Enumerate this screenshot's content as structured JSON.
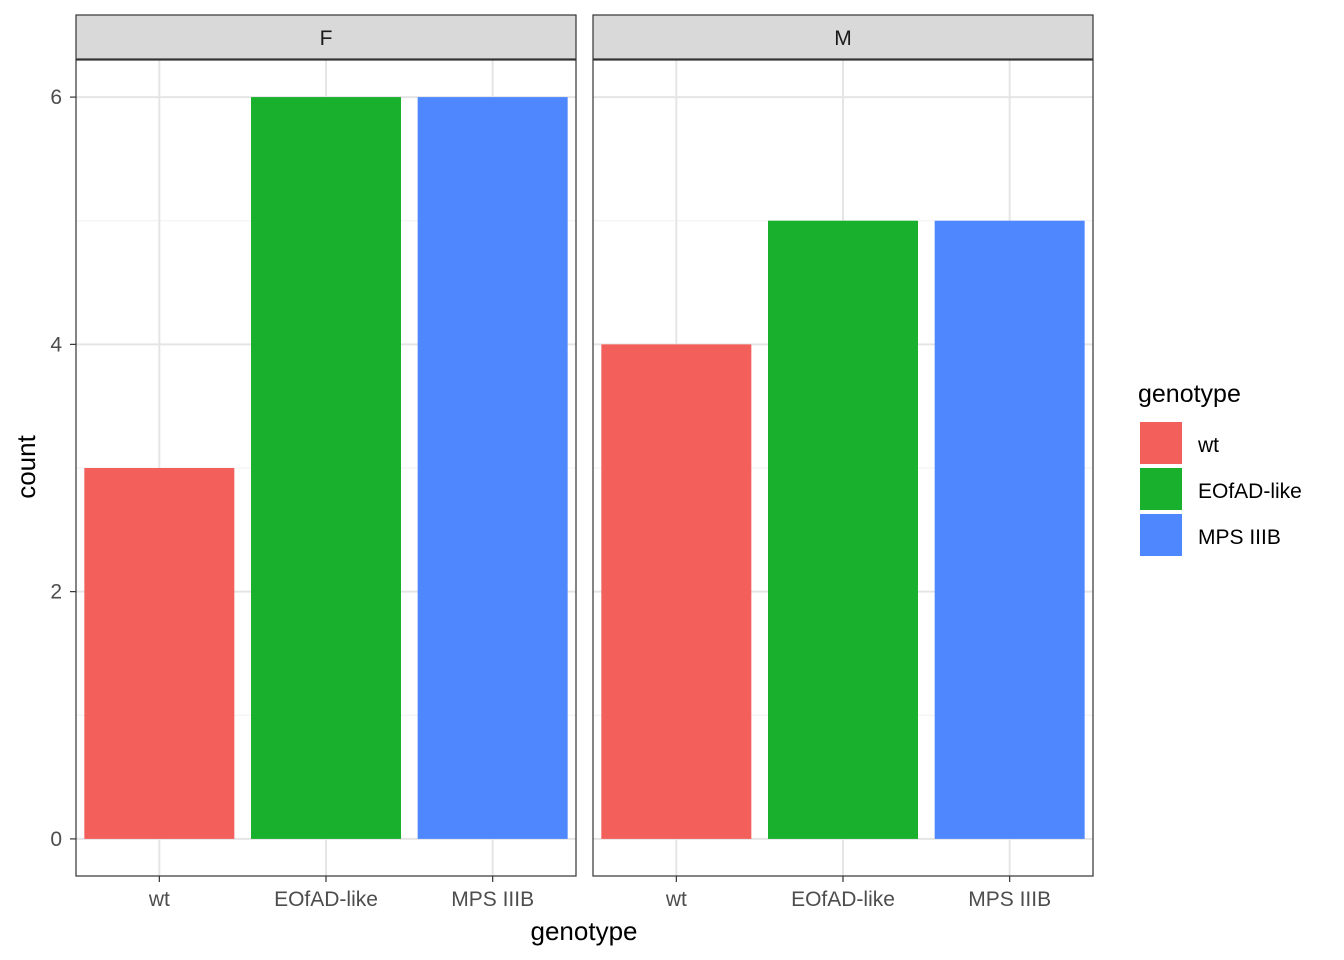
{
  "chart_data": {
    "type": "bar",
    "facet_by": "sex",
    "categories": [
      "wt",
      "EOfAD-like",
      "MPS IIIB"
    ],
    "facets": [
      {
        "label": "F",
        "values": [
          3,
          6,
          6
        ]
      },
      {
        "label": "M",
        "values": [
          4,
          5,
          5
        ]
      }
    ],
    "colors": [
      "#F35F5A",
      "#19B02E",
      "#4F87FF"
    ],
    "xlabel": "genotype",
    "ylabel": "count",
    "ylim": [
      -0.3,
      6.3
    ],
    "yticks": [
      0,
      2,
      4,
      6
    ],
    "yticks_minor": [
      1,
      3,
      5
    ],
    "legend": {
      "title": "genotype",
      "items": [
        "wt",
        "EOfAD-like",
        "MPS IIIB"
      ],
      "position": "right"
    },
    "grid": true,
    "theme": "bw"
  }
}
